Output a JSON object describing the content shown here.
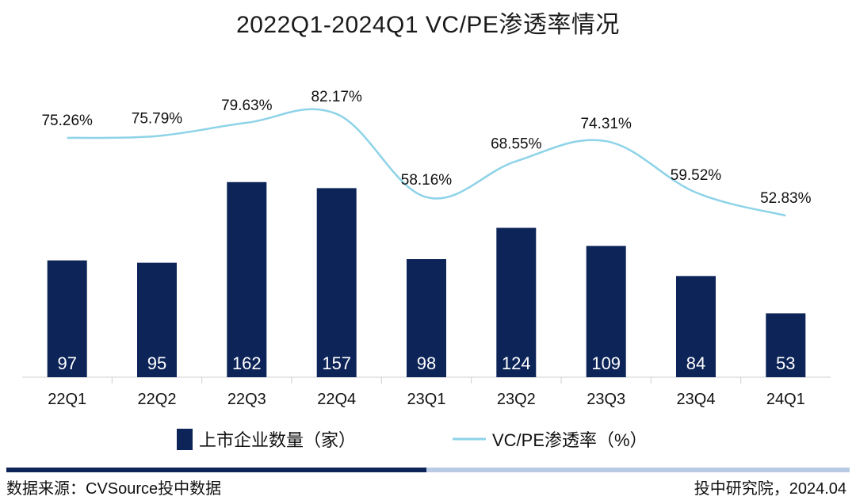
{
  "colors": {
    "bar": "#0d2458",
    "line": "#8ed3e8",
    "footer_dark": "#0d2458",
    "footer_light": "#b9cbe4"
  },
  "footer": {
    "source": "数据来源：CVSource投中数据",
    "credit": "投中研究院，2024.04"
  },
  "chart_data": {
    "type": "bar",
    "title": "2022Q1-2024Q1  VC/PE渗透率情况",
    "categories": [
      "22Q1",
      "22Q2",
      "22Q3",
      "22Q4",
      "23Q1",
      "23Q2",
      "23Q3",
      "23Q4",
      "24Q1"
    ],
    "series": [
      {
        "name": "上市企业数量（家）",
        "type": "bar",
        "values": [
          97,
          95,
          162,
          157,
          98,
          124,
          109,
          84,
          53
        ],
        "labels": [
          "97",
          "95",
          "162",
          "157",
          "98",
          "124",
          "109",
          "84",
          "53"
        ]
      },
      {
        "name": "VC/PE渗透率（%）",
        "type": "line",
        "values": [
          75.26,
          75.79,
          79.63,
          82.17,
          58.16,
          68.55,
          74.31,
          59.52,
          52.83
        ],
        "labels": [
          "75.26%",
          "75.79%",
          "79.63%",
          "82.17%",
          "58.16%",
          "68.55%",
          "74.31%",
          "59.52%",
          "52.83%"
        ]
      }
    ],
    "bar_ylim": [
      0,
      200
    ],
    "line_ylim": [
      0,
      100
    ],
    "legend": [
      "上市企业数量（家）",
      "VC/PE渗透率（%）"
    ],
    "legend_position": "bottom"
  }
}
